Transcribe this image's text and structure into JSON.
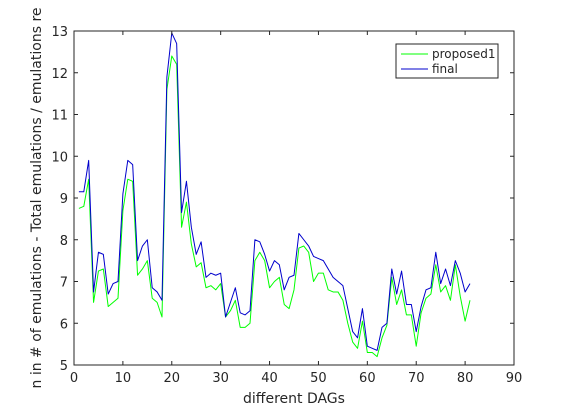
{
  "chart_data": {
    "type": "line",
    "title": "",
    "xlabel": "different DAGs",
    "ylabel": "n in # of emulations - Total emulations / emulations re",
    "xlim": [
      0,
      90
    ],
    "ylim": [
      5,
      13
    ],
    "xticks": [
      0,
      10,
      20,
      30,
      40,
      50,
      60,
      70,
      80,
      90
    ],
    "yticks": [
      5,
      6,
      7,
      8,
      9,
      10,
      11,
      12,
      13
    ],
    "grid": false,
    "legend_position": "top-right",
    "x": [
      1,
      2,
      3,
      4,
      5,
      6,
      7,
      8,
      9,
      10,
      11,
      12,
      13,
      14,
      15,
      16,
      17,
      18,
      19,
      20,
      21,
      22,
      23,
      24,
      25,
      26,
      27,
      28,
      29,
      30,
      31,
      32,
      33,
      34,
      35,
      36,
      37,
      38,
      39,
      40,
      41,
      42,
      43,
      44,
      45,
      46,
      47,
      48,
      49,
      50,
      51,
      52,
      53,
      54,
      55,
      56,
      57,
      58,
      59,
      60,
      61,
      62,
      63,
      64,
      65,
      66,
      67,
      68,
      69,
      70,
      71,
      72,
      73,
      74,
      75,
      76,
      77,
      78,
      79,
      80,
      81
    ],
    "series": [
      {
        "name": "proposed1",
        "color": "#00ff00",
        "values": [
          8.75,
          8.8,
          9.45,
          6.5,
          7.25,
          7.3,
          6.4,
          6.5,
          6.6,
          8.7,
          9.45,
          9.4,
          7.15,
          7.3,
          7.5,
          6.6,
          6.5,
          6.15,
          11.6,
          12.4,
          12.2,
          8.3,
          8.9,
          7.9,
          7.35,
          7.45,
          6.85,
          6.9,
          6.8,
          6.95,
          6.15,
          6.3,
          6.55,
          5.9,
          5.9,
          6.0,
          7.5,
          7.7,
          7.5,
          6.85,
          7.0,
          7.1,
          6.45,
          6.35,
          6.8,
          7.8,
          7.85,
          7.7,
          7.0,
          7.2,
          7.2,
          6.8,
          6.75,
          6.75,
          6.55,
          6.0,
          5.55,
          5.4,
          6.05,
          5.3,
          5.3,
          5.2,
          5.65,
          5.95,
          7.1,
          6.45,
          6.8,
          6.2,
          6.2,
          5.45,
          6.25,
          6.6,
          6.7,
          7.4,
          6.75,
          6.9,
          6.55,
          7.4,
          6.65,
          6.05,
          6.55
        ]
      },
      {
        "name": "final",
        "color": "#0000cc",
        "values": [
          9.15,
          9.15,
          9.9,
          6.75,
          7.7,
          7.65,
          6.7,
          6.95,
          7.0,
          9.1,
          9.9,
          9.8,
          7.5,
          7.85,
          8.0,
          6.85,
          6.75,
          6.55,
          11.9,
          12.95,
          12.7,
          8.65,
          9.4,
          8.3,
          7.65,
          7.95,
          7.1,
          7.2,
          7.15,
          7.2,
          6.15,
          6.5,
          6.85,
          6.25,
          6.2,
          6.3,
          8.0,
          7.95,
          7.65,
          7.25,
          7.5,
          7.4,
          6.8,
          7.1,
          7.15,
          8.15,
          8.0,
          7.85,
          7.6,
          7.55,
          7.5,
          7.3,
          7.1,
          7.0,
          6.9,
          6.35,
          5.8,
          5.65,
          6.35,
          5.45,
          5.4,
          5.35,
          5.9,
          6.0,
          7.3,
          6.7,
          7.25,
          6.45,
          6.45,
          5.8,
          6.4,
          6.8,
          6.85,
          7.7,
          6.95,
          7.3,
          6.9,
          7.5,
          7.2,
          6.75,
          6.95
        ]
      }
    ]
  }
}
